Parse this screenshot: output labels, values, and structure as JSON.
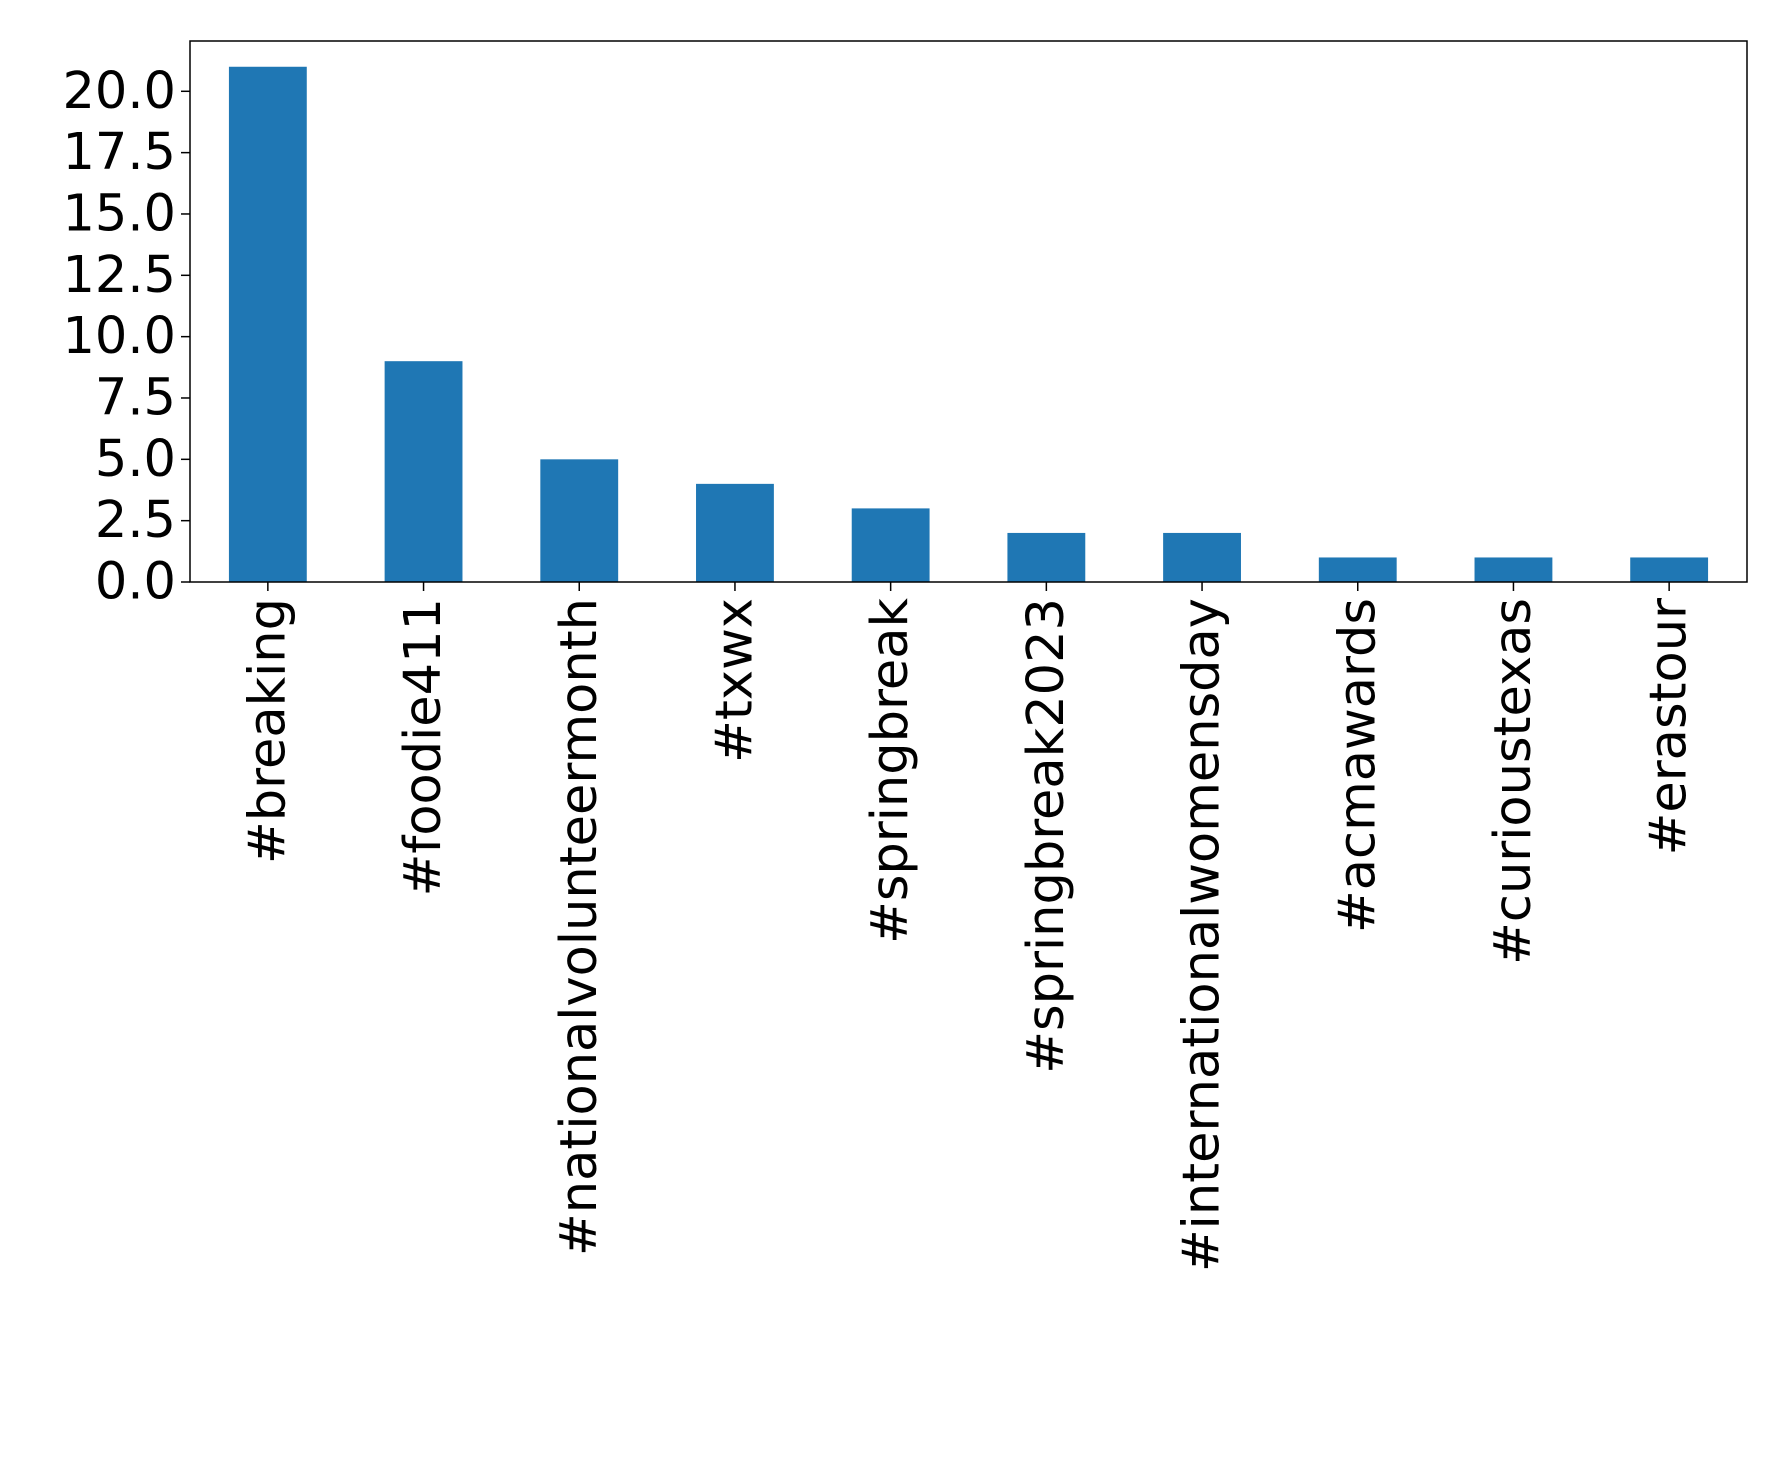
{
  "chart_data": {
    "type": "bar",
    "title": "",
    "xlabel": "",
    "ylabel": "",
    "categories": [
      "#breaking",
      "#foodie411",
      "#nationalvolunteermonth",
      "#txwx",
      "#springbreak",
      "#springbreak2023",
      "#internationalwomensday",
      "#acmawards",
      "#curioustexas",
      "#erastour"
    ],
    "values": [
      21,
      9,
      5,
      4,
      3,
      2,
      2,
      1,
      1,
      1
    ],
    "ylim": [
      0,
      22.05
    ],
    "yticks": [
      "0.0",
      "2.5",
      "5.0",
      "7.5",
      "10.0",
      "12.5",
      "15.0",
      "17.5",
      "20.0"
    ],
    "ytick_values": [
      0,
      2.5,
      5,
      7.5,
      10,
      12.5,
      15,
      17.5,
      20
    ],
    "grid": false,
    "legend": "none",
    "bar_color": "#1f77b4"
  }
}
